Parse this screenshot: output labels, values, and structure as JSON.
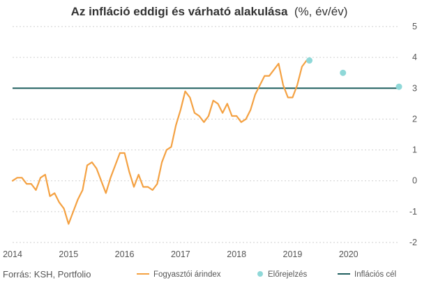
{
  "chart_data": {
    "type": "line",
    "title": "Az infláció eddigi és várható alakulása",
    "title_unit": "(%, év/év)",
    "source": "Forrás: KSH, Portfolio",
    "xlim": [
      2014,
      2020.9
    ],
    "ylim": [
      -2,
      5
    ],
    "x_ticks": [
      "2014",
      "2015",
      "2016",
      "2017",
      "2018",
      "2019",
      "2020"
    ],
    "y_ticks": [
      "-2",
      "-1",
      "0",
      "1",
      "2",
      "3",
      "4",
      "5"
    ],
    "series": [
      {
        "name": "Fogyasztói árindex",
        "kind": "line",
        "color": "#f4a142",
        "x": [
          2014.0,
          2014.083,
          2014.167,
          2014.25,
          2014.333,
          2014.417,
          2014.5,
          2014.583,
          2014.667,
          2014.75,
          2014.833,
          2014.917,
          2015.0,
          2015.083,
          2015.167,
          2015.25,
          2015.333,
          2015.417,
          2015.5,
          2015.583,
          2015.667,
          2015.75,
          2015.833,
          2015.917,
          2016.0,
          2016.083,
          2016.167,
          2016.25,
          2016.333,
          2016.417,
          2016.5,
          2016.583,
          2016.667,
          2016.75,
          2016.833,
          2016.917,
          2017.0,
          2017.083,
          2017.167,
          2017.25,
          2017.333,
          2017.417,
          2017.5,
          2017.583,
          2017.667,
          2017.75,
          2017.833,
          2017.917,
          2018.0,
          2018.083,
          2018.167,
          2018.25,
          2018.333,
          2018.417,
          2018.5,
          2018.583,
          2018.667,
          2018.75,
          2018.833,
          2018.917,
          2019.0,
          2019.083,
          2019.167,
          2019.25
        ],
        "y": [
          0.0,
          0.1,
          0.1,
          -0.1,
          -0.1,
          -0.3,
          0.1,
          0.2,
          -0.5,
          -0.4,
          -0.7,
          -0.9,
          -1.4,
          -1.0,
          -0.6,
          -0.3,
          0.5,
          0.6,
          0.4,
          0.0,
          -0.4,
          0.1,
          0.5,
          0.9,
          0.9,
          0.3,
          -0.2,
          0.2,
          -0.2,
          -0.2,
          -0.3,
          -0.1,
          0.6,
          1.0,
          1.1,
          1.8,
          2.3,
          2.9,
          2.7,
          2.2,
          2.1,
          1.9,
          2.1,
          2.6,
          2.5,
          2.2,
          2.5,
          2.1,
          2.1,
          1.9,
          2.0,
          2.3,
          2.8,
          3.1,
          3.4,
          3.4,
          3.6,
          3.8,
          3.1,
          2.7,
          2.7,
          3.1,
          3.7,
          3.9
        ]
      },
      {
        "name": "Előrejelzés",
        "kind": "scatter",
        "color": "#8fd8d8",
        "x": [
          2019.3,
          2019.9,
          2020.9
        ],
        "y": [
          3.9,
          3.5,
          3.05
        ]
      },
      {
        "name": "Inflációs cél",
        "kind": "hline",
        "color": "#1f5e5e",
        "y": 3
      }
    ],
    "grid": "horizontal-dotted",
    "legend": "bottom"
  }
}
